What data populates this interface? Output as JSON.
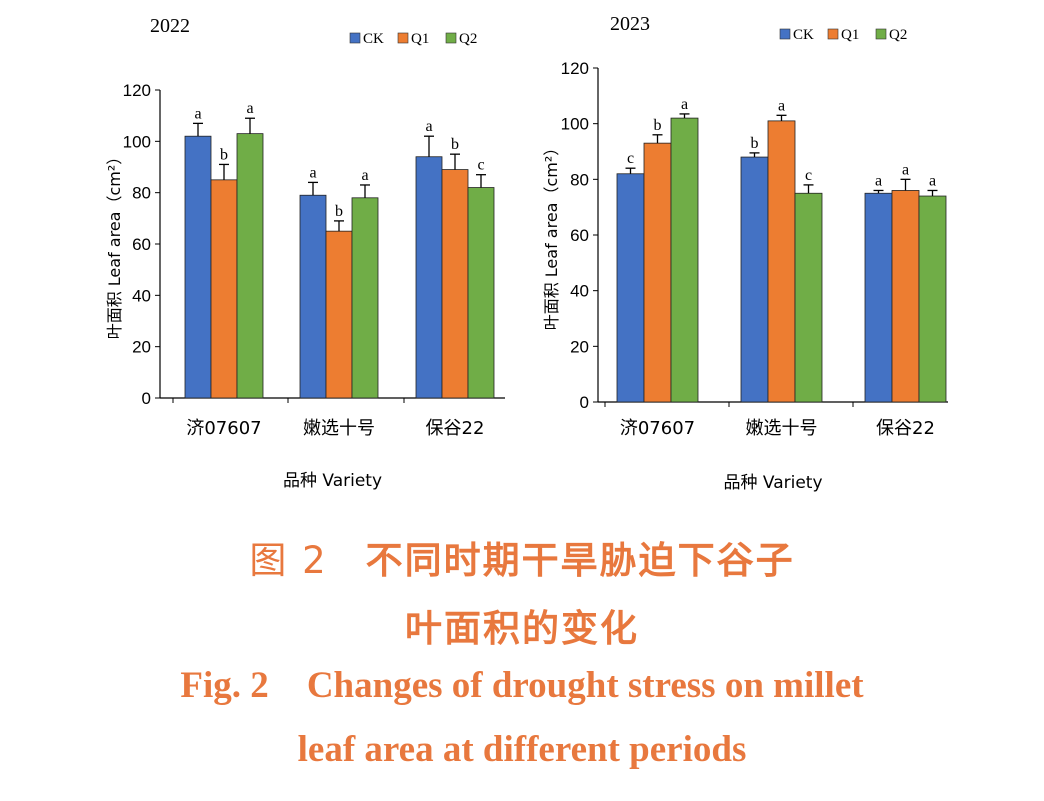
{
  "caption": {
    "cn_label": "图 2",
    "cn_line1": "不同时期干旱胁迫下谷子",
    "cn_line2": "叶面积的变化",
    "en_label": "Fig. 2",
    "en_line1": "Changes of drought stress on millet",
    "en_line2": "leaf area at different periods"
  },
  "chart_data": [
    {
      "type": "bar",
      "title": "2022",
      "ylabel": "叶面积 Leaf area（cm²）",
      "xlabel": "品种 Variety",
      "categories": [
        "济07607",
        "嫩选十号",
        "保谷22"
      ],
      "ylim": [
        0,
        120
      ],
      "yticks": [
        0,
        20,
        40,
        60,
        80,
        100,
        120
      ],
      "legend_position": "top-right",
      "series": [
        {
          "name": "CK",
          "color": "#4472c4",
          "values": [
            102,
            79,
            94
          ],
          "errors": [
            5,
            5,
            8
          ],
          "letters": [
            "a",
            "a",
            "a"
          ]
        },
        {
          "name": "Q1",
          "color": "#ed7d31",
          "values": [
            85,
            65,
            89
          ],
          "errors": [
            6,
            4,
            6
          ],
          "letters": [
            "b",
            "b",
            "b"
          ]
        },
        {
          "name": "Q2",
          "color": "#70ad47",
          "values": [
            103,
            78,
            82
          ],
          "errors": [
            6,
            5,
            5
          ],
          "letters": [
            "a",
            "a",
            "c"
          ]
        }
      ]
    },
    {
      "type": "bar",
      "title": "2023",
      "ylabel": "叶面积 Leaf area（cm²）",
      "xlabel": "品种 Variety",
      "categories": [
        "济07607",
        "嫩选十号",
        "保谷22"
      ],
      "ylim": [
        0,
        120
      ],
      "yticks": [
        0,
        20,
        40,
        60,
        80,
        100,
        120
      ],
      "legend_position": "top-right",
      "series": [
        {
          "name": "CK",
          "color": "#4472c4",
          "values": [
            82,
            88,
            75
          ],
          "errors": [
            2,
            1.5,
            1
          ],
          "letters": [
            "c",
            "b",
            "a"
          ]
        },
        {
          "name": "Q1",
          "color": "#ed7d31",
          "values": [
            93,
            101,
            76
          ],
          "errors": [
            3,
            2,
            4
          ],
          "letters": [
            "b",
            "a",
            "a"
          ]
        },
        {
          "name": "Q2",
          "color": "#70ad47",
          "values": [
            102,
            75,
            74
          ],
          "errors": [
            1.5,
            3,
            2
          ],
          "letters": [
            "a",
            "c",
            "a"
          ]
        }
      ]
    }
  ]
}
